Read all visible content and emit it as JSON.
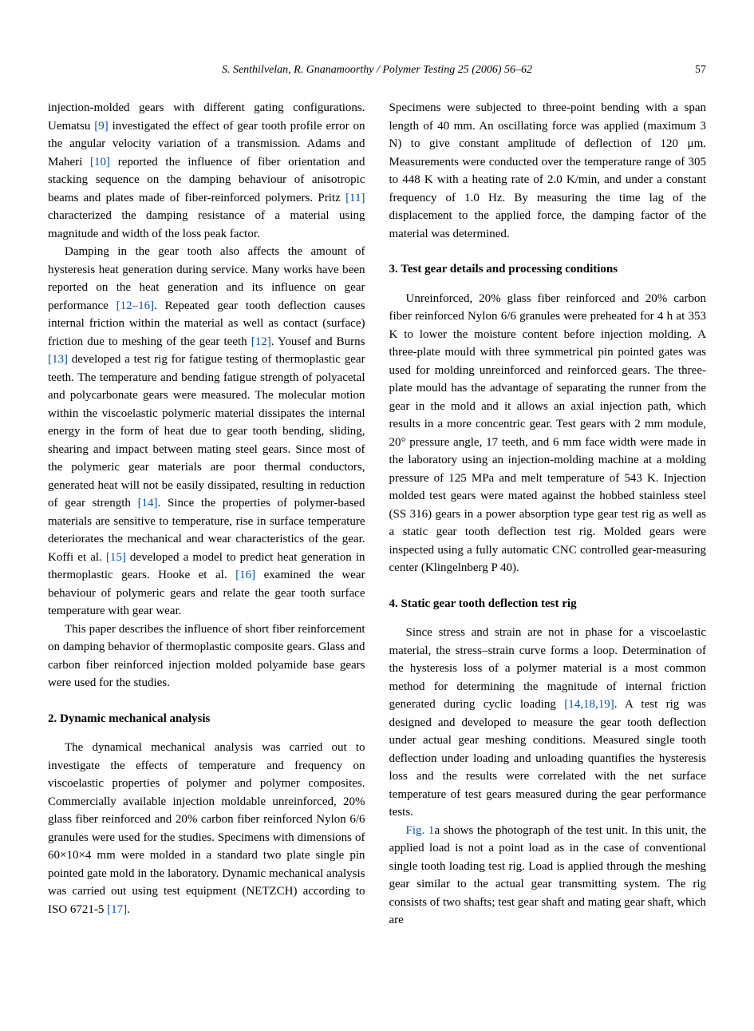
{
  "header": {
    "running_head": "S. Senthilvelan, R. Gnanamoorthy / Polymer Testing 25 (2006) 56–62",
    "page_number": "57"
  },
  "left_column": {
    "para1_before_ref9": "injection-molded gears with different gating configurations. Uematsu ",
    "ref9": "[9]",
    "para1_after_ref9": " investigated the effect of gear tooth profile error on the angular velocity variation of a transmission. Adams and Maheri ",
    "ref10": "[10]",
    "para1_after_ref10": " reported the influence of fiber orientation and stacking sequence on the damping behaviour of anisotropic beams and plates made of fiber-reinforced polymers. Pritz ",
    "ref11": "[11]",
    "para1_end": " characterized the damping resistance of a material using magnitude and width of the loss peak factor.",
    "para2_start": "Damping in the gear tooth also affects the amount of hysteresis heat generation during service. Many works have been reported on the heat generation and its influence on gear performance ",
    "ref12_16": "[12–16]",
    "para2_after_1216": ". Repeated gear tooth deflection causes internal friction within the material as well as contact (surface) friction due to meshing of the gear teeth ",
    "ref12": "[12]",
    "para2_after_12": ". Yousef and Burns ",
    "ref13": "[13]",
    "para2_after_13": " developed a test rig for fatigue testing of thermoplastic gear teeth. The temperature and bending fatigue strength of polyacetal and polycarbonate gears were measured. The molecular motion within the viscoelastic polymeric material dissipates the internal energy in the form of heat due to gear tooth bending, sliding, shearing and impact between mating steel gears. Since most of the polymeric gear materials are poor thermal conductors, generated heat will not be easily dissipated, resulting in reduction of gear strength ",
    "ref14": "[14]",
    "para2_after_14": ". Since the properties of polymer-based materials are sensitive to temperature, rise in surface temperature deteriorates the mechanical and wear characteristics of the gear. Koffi et al. ",
    "ref15": "[15]",
    "para2_after_15": " developed a model to predict heat generation in thermoplastic gears. Hooke et al. ",
    "ref16": "[16]",
    "para2_end": " examined the wear behaviour of polymeric gears and relate the gear tooth surface temperature with gear wear.",
    "para3": "This paper describes the influence of short fiber reinforcement on damping behavior of thermoplastic composite gears. Glass and carbon fiber reinforced injection molded polyamide base gears were used for the studies.",
    "section2_heading": "2. Dynamic mechanical analysis",
    "section2_para_start": "The dynamical mechanical analysis was carried out to investigate the effects of temperature and frequency on viscoelastic properties of polymer and polymer composites. Commercially available injection moldable unreinforced, 20% glass fiber reinforced and 20% carbon fiber reinforced Nylon 6/6 granules were used for the studies. Specimens with dimensions of 60×10×4 mm were molded in a standard two plate single pin pointed gate mold in the laboratory. Dynamic mechanical analysis was carried out using test equipment (NETZCH) according to ISO 6721-5 ",
    "ref17": "[17]",
    "section2_para_end": "."
  },
  "right_column": {
    "para1": "Specimens were subjected to three-point bending with a span length of 40 mm. An oscillating force was applied (maximum 3 N) to give constant amplitude of deflection of 120 μm. Measurements were conducted over the temperature range of 305 to 448 K with a heating rate of 2.0 K/min, and under a constant frequency of 1.0 Hz. By measuring the time lag of the displacement to the applied force, the damping factor of the material was determined.",
    "section3_heading": "3. Test gear details and processing conditions",
    "section3_para": "Unreinforced, 20% glass fiber reinforced and 20% carbon fiber reinforced Nylon 6/6 granules were preheated for 4 h at 353 K to lower the moisture content before injection molding. A three-plate mould with three symmetrical pin pointed gates was used for molding unreinforced and reinforced gears. The three-plate mould has the advantage of separating the runner from the gear in the mold and it allows an axial injection path, which results in a more concentric gear. Test gears with 2 mm module, 20° pressure angle, 17 teeth, and 6 mm face width were made in the laboratory using an injection-molding machine at a molding pressure of 125 MPa and melt temperature of 543 K. Injection molded test gears were mated against the hobbed stainless steel (SS 316) gears in a power absorption type gear test rig as well as a static gear tooth deflection test rig. Molded gears were inspected using a fully automatic CNC controlled gear-measuring center (Klingelnberg P 40).",
    "section4_heading": "4. Static gear tooth deflection test rig",
    "section4_para1_start": "Since stress and strain are not in phase for a viscoelastic material, the stress–strain curve forms a loop. Determination of the hysteresis loss of a polymer material is a most common method for determining the magnitude of internal friction generated during cyclic loading ",
    "ref141819": "[14,18,19]",
    "section4_para1_end": ". A test rig was designed and developed to measure the gear tooth deflection under actual gear meshing conditions. Measured single tooth deflection under loading and unloading quantifies the hysteresis loss and the results were correlated with the net surface temperature of test gears measured during the gear performance tests.",
    "section4_para2_fig": "Fig. 1",
    "section4_para2_rest": "a shows the photograph of the test unit. In this unit, the applied load is not a point load as in the case of conventional single tooth loading test rig. Load is applied through the meshing gear similar to the actual gear transmitting system. The rig consists of two shafts; test gear shaft and mating gear shaft, which are"
  }
}
